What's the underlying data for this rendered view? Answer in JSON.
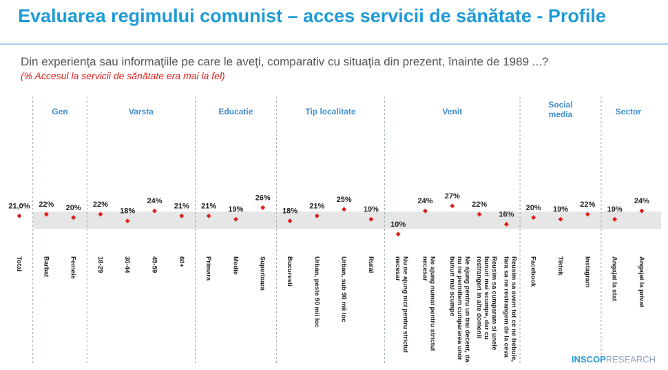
{
  "chart_data": {
    "type": "dot",
    "title": "Evaluarea regimului comunist – acces servicii de sănătate - Profile",
    "subtitle": "Din experienţa sau informaţiile pe care le aveţi, comparativ cu situaţia din prezent, înainte de 1989 ...?",
    "note": "(% Accesul la servicii de sănătate era mai la fel)",
    "color": "#e0201b",
    "total": {
      "category": "Total",
      "value": 21.0,
      "value_label": "21,0%"
    },
    "groups": [
      {
        "name": "Gen",
        "categories": [
          "Barbat",
          "Femeie"
        ],
        "values": [
          22,
          20
        ],
        "value_labels": [
          "22%",
          "20%"
        ]
      },
      {
        "name": "Varsta",
        "categories": [
          "18-29",
          "30-44",
          "45-59",
          "60+"
        ],
        "values": [
          22,
          18,
          24,
          21
        ],
        "value_labels": [
          "22%",
          "18%",
          "24%",
          "21%"
        ]
      },
      {
        "name": "Educatie",
        "categories": [
          "Primara",
          "Medie",
          "Superioara"
        ],
        "values": [
          21,
          19,
          26
        ],
        "value_labels": [
          "21%",
          "19%",
          "26%"
        ]
      },
      {
        "name": "Tip localitate",
        "categories": [
          "Bucuresti",
          "Urban, peste 90 mii loc",
          "Urban, sub 90 mii loc",
          "Rural"
        ],
        "values": [
          18,
          21,
          25,
          19
        ],
        "value_labels": [
          "18%",
          "21%",
          "25%",
          "19%"
        ]
      },
      {
        "name": "Venit",
        "categories": [
          "Nu ne ajung nici pentru strictul necesar",
          "Ne ajung numai pentru strictul necesar",
          "Ne ajung pentru un trai decent, da nu ne permitem cumpararea unor bunuri mai scumpe",
          "Reusim sa cumparam si unele bunuri mai scumpe, dar cu restrangeri in alte domenii",
          "Reusim sa avem tot ce ne trebuie, fara sa ne restrangem de la ceva"
        ],
        "values": [
          10,
          24,
          27,
          22,
          16
        ],
        "value_labels": [
          "10%",
          "24%",
          "27%",
          "22%",
          "16%"
        ]
      },
      {
        "name": "Social media",
        "categories": [
          "Facebook",
          "Tiktok",
          "Instagram"
        ],
        "values": [
          20,
          19,
          22
        ],
        "value_labels": [
          "20%",
          "19%",
          "22%"
        ]
      },
      {
        "name": "Sector",
        "categories": [
          "Angajat la stat",
          "Angajat la privat"
        ],
        "values": [
          19,
          24
        ],
        "value_labels": [
          "19%",
          "24%"
        ]
      }
    ]
  },
  "logo": {
    "brand": "INSCOP",
    "suffix": "RESEARCH"
  }
}
